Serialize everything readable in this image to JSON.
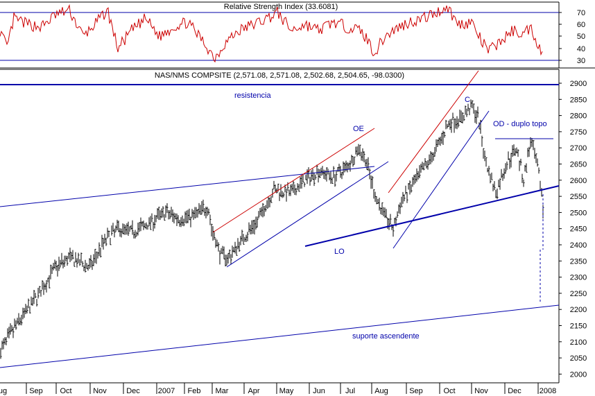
{
  "rsi_panel": {
    "title": "Relative Strength Index (33.6081)",
    "y_ticks": [
      "70",
      "60",
      "50",
      "40",
      "30"
    ],
    "levels": [
      70,
      30
    ],
    "ylim": [
      25,
      80
    ],
    "line_color": "#cc0000",
    "level_color": "#0000aa"
  },
  "price_panel": {
    "title": "NAS/NMS COMPSITE (2,571.08, 2,571.08, 2,502.68, 2,504.65, -98.0300)",
    "y_ticks": [
      "2900",
      "2850",
      "2800",
      "2750",
      "2700",
      "2650",
      "2600",
      "2550",
      "2500",
      "2450",
      "2400",
      "2350",
      "2300",
      "2250",
      "2200",
      "2150",
      "2100",
      "2050",
      "2000"
    ],
    "ylim": [
      1980,
      2920
    ],
    "bar_color": "#000000",
    "annotation_color": "#0000aa",
    "annotations": {
      "resistencia": "resistencia",
      "oe": "OE",
      "c": "C",
      "od": "OD - duplo topo",
      "lo": "LO",
      "suporte": "suporte ascendente"
    }
  },
  "x_axis": {
    "labels": [
      "ug",
      "Sep",
      "Oct",
      "Nov",
      "Dec",
      "2007",
      "Feb",
      "Mar",
      "Apr",
      "May",
      "Jun",
      "Jul",
      "Aug",
      "Sep",
      "Oct",
      "Nov",
      "Dec",
      "2008"
    ]
  },
  "chart_data": [
    {
      "type": "line",
      "title": "Relative Strength Index (33.6081)",
      "series": [
        {
          "name": "Relative Strength Index",
          "x": [
            "2006-08",
            "2006-09",
            "2006-10",
            "2006-11",
            "2006-12",
            "2007-01",
            "2007-02",
            "2007-03",
            "2007-04",
            "2007-05",
            "2007-06",
            "2007-07",
            "2007-08",
            "2007-09",
            "2007-10",
            "2007-11",
            "2007-12",
            "2008-01"
          ],
          "values": [
            55,
            60,
            68,
            62,
            58,
            50,
            60,
            35,
            58,
            62,
            60,
            57,
            36,
            58,
            72,
            42,
            55,
            33.6
          ]
        }
      ],
      "ylim": [
        25,
        80
      ],
      "reference_lines": [
        70,
        30
      ]
    },
    {
      "type": "bar",
      "subtype": "ohlc",
      "title": "NAS/NMS COMPSITE (2,571.08, 2,571.08, 2,502.68, 2,504.65, -98.0300)",
      "x": [
        "2006-08",
        "2006-09",
        "2006-10",
        "2006-11",
        "2006-12",
        "2007-01",
        "2007-02",
        "2007-03",
        "2007-04",
        "2007-05",
        "2007-06",
        "2007-07",
        "2007-08",
        "2007-09",
        "2007-10",
        "2007-11",
        "2007-12",
        "2008-01"
      ],
      "series": [
        {
          "values": [
            2080,
            2200,
            2340,
            2440,
            2450,
            2460,
            2480,
            2380,
            2480,
            2550,
            2600,
            2650,
            2470,
            2600,
            2790,
            2620,
            2660,
            2505
          ]
        }
      ],
      "last_bar": {
        "open": 2571.08,
        "high": 2571.08,
        "low": 2502.68,
        "close": 2504.65,
        "change": -98.03
      },
      "ylim": [
        1980,
        2920
      ],
      "trendlines": [
        {
          "name": "resistencia",
          "from": [
            "2006-08",
            2895
          ],
          "to": [
            "2008-01",
            2895
          ]
        },
        {
          "name": "OE",
          "from": [
            "2007-03",
            2440
          ],
          "to": [
            "2007-07",
            2760
          ]
        },
        {
          "name": "C",
          "from": [
            "2007-08",
            2550
          ],
          "to": [
            "2007-11",
            2920
          ]
        },
        {
          "name": "LO",
          "from": [
            "2007-06",
            2395
          ],
          "to": [
            "2008-01",
            2585
          ]
        },
        {
          "name": "OD - duplo topo",
          "from": [
            "2007-11",
            2730
          ],
          "to": [
            "2008-01",
            2730
          ]
        },
        {
          "name": "suporte ascendente",
          "from": [
            "2006-08",
            2020
          ],
          "to": [
            "2008-01",
            2210
          ]
        }
      ]
    }
  ]
}
